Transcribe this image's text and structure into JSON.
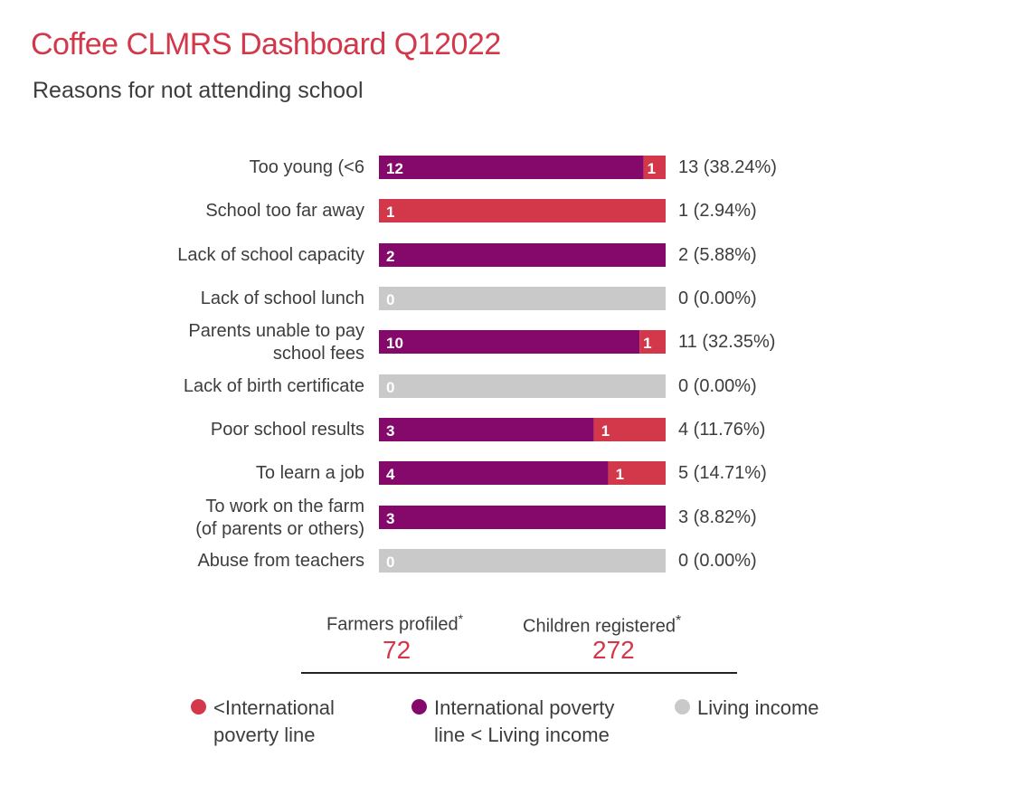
{
  "title": "Coffee CLMRS Dashboard Q12022",
  "subtitle": "Reasons for not attending school",
  "colors": {
    "below_poverty": "#d3374a",
    "between": "#84096a",
    "living_income": "#c9c9c9",
    "title": "#d3374a"
  },
  "chart_data": {
    "type": "bar",
    "orientation": "horizontal",
    "stacked": true,
    "normalized": true,
    "categories": [
      [
        "Too young (<6"
      ],
      [
        "School too far away"
      ],
      [
        "Lack of school capacity"
      ],
      [
        "Lack of school lunch"
      ],
      [
        "Parents unable to pay",
        "school fees"
      ],
      [
        "Lack of birth certificate"
      ],
      [
        "Poor school results"
      ],
      [
        "To learn a job"
      ],
      [
        "To work on the farm",
        "(of parents or others)"
      ],
      [
        "Abuse from teachers"
      ]
    ],
    "series": [
      {
        "name": "International poverty line < Living income",
        "key": "between",
        "values": [
          12,
          0,
          2,
          0,
          10,
          0,
          3,
          4,
          3,
          0
        ]
      },
      {
        "name": "<International poverty line",
        "key": "below_poverty",
        "values": [
          1,
          1,
          0,
          0,
          1,
          0,
          1,
          1,
          0,
          0
        ]
      },
      {
        "name": "Living income",
        "key": "living_income",
        "values": [
          0,
          0,
          0,
          0,
          0,
          0,
          0,
          0,
          0,
          0
        ]
      }
    ],
    "totals": [
      "13 (38.24%)",
      "1 (2.94%)",
      "2 (5.88%)",
      "0 (0.00%)",
      "11 (32.35%)",
      "0 (0.00%)",
      "4 (11.76%)",
      "5 (14.71%)",
      "3 (8.82%)",
      "0 (0.00%)"
    ]
  },
  "stats": {
    "farmers_label": "Farmers profiled",
    "farmers_mark": "*",
    "farmers_value": "72",
    "children_label": "Children registered",
    "children_mark": "*",
    "children_value": "272"
  },
  "legend": [
    {
      "color_key": "below_poverty",
      "lines": [
        "<International",
        "poverty line"
      ]
    },
    {
      "color_key": "between",
      "lines": [
        "International poverty",
        "line < Living income"
      ]
    },
    {
      "color_key": "living_income",
      "lines": [
        "Living income"
      ]
    }
  ]
}
